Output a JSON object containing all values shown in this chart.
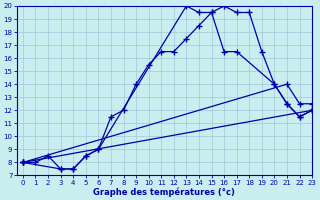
{
  "xlabel": "Graphe des températures (°c)",
  "xlim": [
    -0.5,
    23
  ],
  "ylim": [
    7,
    20
  ],
  "yticks": [
    7,
    8,
    9,
    10,
    11,
    12,
    13,
    14,
    15,
    16,
    17,
    18,
    19,
    20
  ],
  "xticks": [
    0,
    1,
    2,
    3,
    4,
    5,
    6,
    7,
    8,
    9,
    10,
    11,
    12,
    13,
    14,
    15,
    16,
    17,
    18,
    19,
    20,
    21,
    22,
    23
  ],
  "bg_color": "#c8eef0",
  "line_color": "#0000aa",
  "grid_color": "#a0c8d8",
  "curve1_x": [
    0,
    1,
    2,
    3,
    4,
    5,
    6,
    7,
    8,
    9,
    10,
    11,
    12,
    13,
    14,
    15,
    16,
    17,
    18,
    19,
    20,
    21,
    22,
    23
  ],
  "curve1_y": [
    8.0,
    8.0,
    8.5,
    7.5,
    7.5,
    8.5,
    9.0,
    11.5,
    12.0,
    14.0,
    15.5,
    16.5,
    16.5,
    17.5,
    18.5,
    19.5,
    20.0,
    19.5,
    19.5,
    16.5,
    14.0,
    12.5,
    11.5,
    12.0
  ],
  "curve2_x": [
    0,
    3,
    4,
    5,
    6,
    13,
    14,
    15,
    16,
    17,
    20,
    21,
    22,
    23
  ],
  "curve2_y": [
    8.0,
    7.5,
    7.5,
    8.5,
    9.0,
    20.0,
    19.5,
    19.5,
    16.5,
    16.5,
    14.0,
    12.5,
    11.5,
    12.0
  ],
  "line1_x": [
    0,
    21,
    22,
    23
  ],
  "line1_y": [
    8.0,
    14.0,
    12.5,
    12.5
  ],
  "line2_x": [
    0,
    23
  ],
  "line2_y": [
    8.0,
    12.0
  ]
}
